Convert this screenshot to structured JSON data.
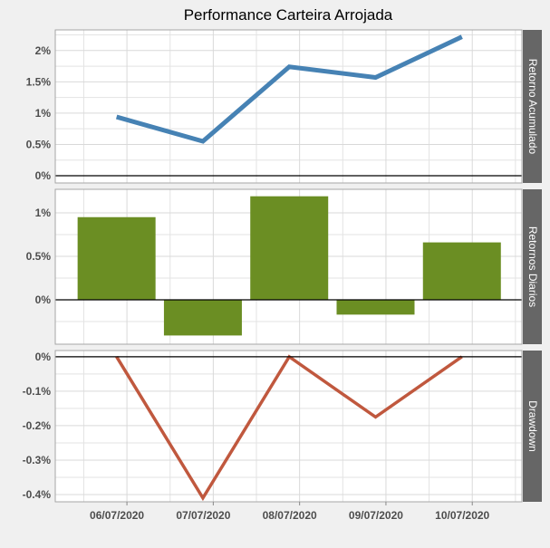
{
  "chart_data": {
    "type": "line",
    "title": "Performance Carteira Arrojada",
    "x": [
      "06/07/2020",
      "07/07/2020",
      "08/07/2020",
      "09/07/2020",
      "10/07/2020"
    ],
    "x_tick_labels": [
      "06/07/2020",
      "07/07/2020",
      "08/07/2020",
      "09/07/2020",
      "10/07/2020"
    ],
    "x_range": [
      -0.83,
      4.575
    ],
    "panels": [
      {
        "name": "Retorno Acumulado",
        "type": "line",
        "color": "#4682b4",
        "values": [
          0.94,
          0.55,
          1.74,
          1.57,
          2.22
        ],
        "ylim": [
          -0.116,
          2.33
        ],
        "yticks": [
          0,
          0.5,
          1,
          1.5,
          2
        ],
        "ytick_labels": [
          "0%",
          "0.5%",
          "1%",
          "1.5%",
          "2%"
        ],
        "minor": [
          0.25,
          0.75,
          1.25,
          1.75,
          2.25
        ]
      },
      {
        "name": "Retornos Diarios",
        "type": "bar",
        "color": "#6b8e23",
        "values": [
          0.95,
          -0.41,
          1.19,
          -0.17,
          0.66
        ],
        "ylim": [
          -0.51,
          1.27
        ],
        "yticks": [
          0,
          0.5,
          1
        ],
        "ytick_labels": [
          "0%",
          "0.5%",
          "1%"
        ],
        "minor": [
          -0.25,
          0.25,
          0.75
        ]
      },
      {
        "name": "Drawdown",
        "type": "line",
        "color": "#c0583e",
        "values": [
          0,
          -0.41,
          0,
          -0.175,
          0
        ],
        "ylim": [
          -0.421,
          0.018
        ],
        "yticks": [
          0,
          -0.1,
          -0.2,
          -0.3,
          -0.4
        ],
        "ytick_labels": [
          "0%",
          "-0.1%",
          "-0.2%",
          "-0.3%",
          "-0.4%"
        ],
        "minor": [
          -0.05,
          -0.15,
          -0.25,
          -0.35
        ]
      }
    ],
    "grid": true,
    "ylabel_unit": "%"
  }
}
